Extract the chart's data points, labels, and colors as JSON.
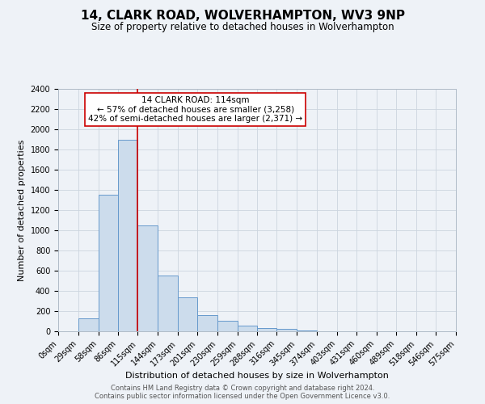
{
  "title": "14, CLARK ROAD, WOLVERHAMPTON, WV3 9NP",
  "subtitle": "Size of property relative to detached houses in Wolverhampton",
  "xlabel": "Distribution of detached houses by size in Wolverhampton",
  "ylabel": "Number of detached properties",
  "bin_edges": [
    0,
    29,
    58,
    86,
    115,
    144,
    173,
    201,
    230,
    259,
    288,
    316,
    345,
    374,
    403,
    431,
    460,
    489,
    518,
    546,
    575
  ],
  "bar_heights": [
    0,
    125,
    1350,
    1900,
    1050,
    550,
    340,
    160,
    105,
    60,
    30,
    25,
    8,
    3,
    2,
    1,
    1,
    0,
    0,
    1
  ],
  "bar_color": "#ccdcec",
  "bar_edge_color": "#6699cc",
  "property_size": 114,
  "vline_color": "#cc0000",
  "annotation_line1": "14 CLARK ROAD: 114sqm",
  "annotation_line2": "← 57% of detached houses are smaller (3,258)",
  "annotation_line3": "42% of semi-detached houses are larger (2,371) →",
  "annotation_box_color": "#ffffff",
  "annotation_box_edge": "#cc0000",
  "ylim": [
    0,
    2400
  ],
  "yticks": [
    0,
    200,
    400,
    600,
    800,
    1000,
    1200,
    1400,
    1600,
    1800,
    2000,
    2200,
    2400
  ],
  "footer_line1": "Contains HM Land Registry data © Crown copyright and database right 2024.",
  "footer_line2": "Contains public sector information licensed under the Open Government Licence v3.0.",
  "background_color": "#eef2f7",
  "grid_color": "#ccd5df",
  "title_fontsize": 11,
  "subtitle_fontsize": 8.5,
  "axis_label_fontsize": 8,
  "tick_fontsize": 7,
  "annotation_fontsize": 7.5,
  "footer_fontsize": 6
}
